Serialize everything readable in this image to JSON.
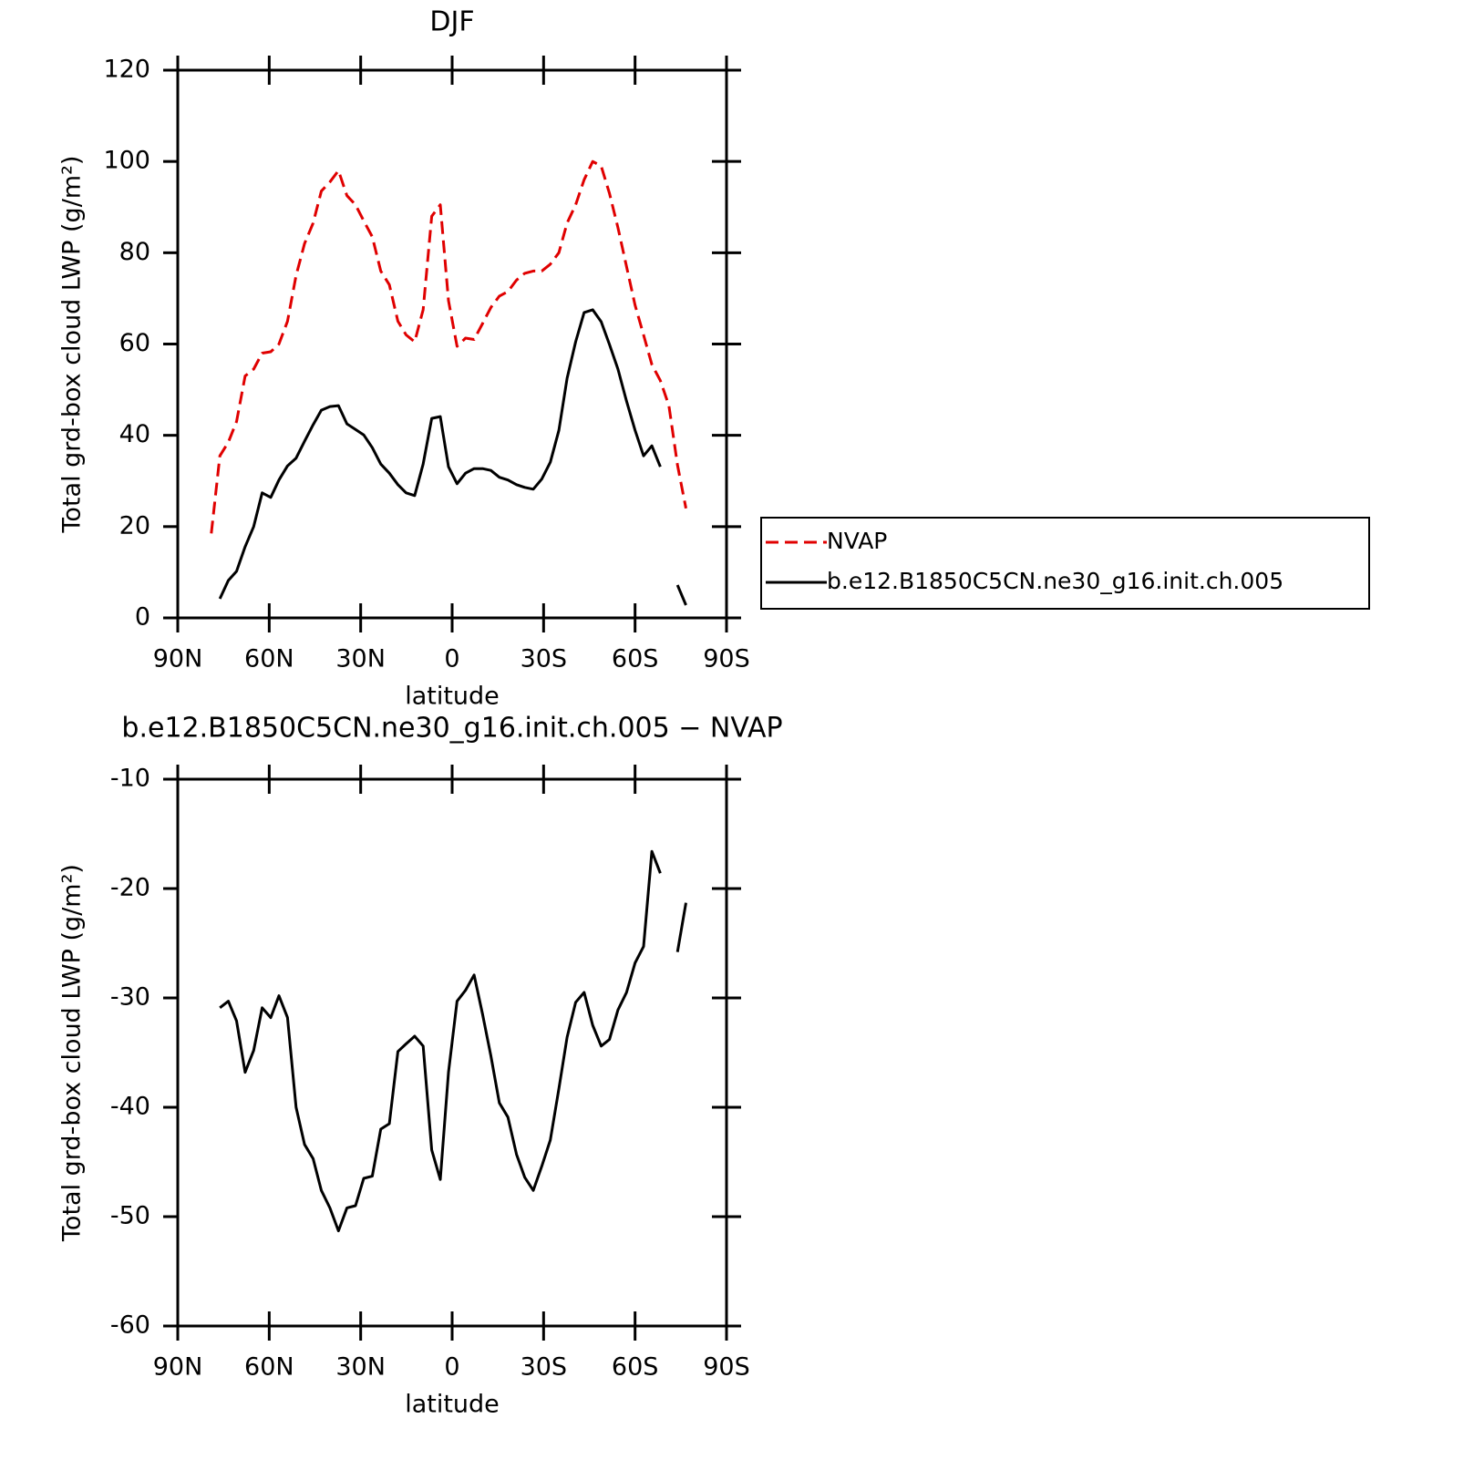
{
  "chart_data": [
    {
      "type": "line",
      "title": "DJF",
      "xlabel": "latitude",
      "ylabel": "Total grd-box cloud LWP (g/m²)",
      "xlim": [
        90,
        -90
      ],
      "ylim": [
        0,
        120
      ],
      "xticks": [
        {
          "value": 90,
          "label": "90N"
        },
        {
          "value": 60,
          "label": "60N"
        },
        {
          "value": 30,
          "label": "30N"
        },
        0,
        {
          "value": -30,
          "label": "30S"
        },
        {
          "value": -60,
          "label": "60S"
        },
        {
          "value": -90,
          "label": "90S"
        }
      ],
      "yticks": [
        0,
        20,
        40,
        60,
        80,
        100,
        120
      ],
      "x": [
        79.0,
        76.2,
        73.4,
        70.7,
        67.9,
        65.1,
        62.3,
        59.5,
        56.8,
        54.0,
        51.2,
        48.4,
        45.6,
        42.9,
        40.1,
        37.3,
        34.5,
        31.7,
        29.0,
        26.2,
        23.4,
        20.6,
        17.8,
        15.1,
        12.3,
        9.5,
        6.7,
        3.9,
        1.2,
        -1.6,
        -4.4,
        -7.2,
        -10.0,
        -12.7,
        -15.5,
        -18.3,
        -21.1,
        -23.8,
        -26.6,
        -29.4,
        -32.2,
        -35.0,
        -37.7,
        -40.5,
        -43.3,
        -46.1,
        -48.9,
        -51.6,
        -54.4,
        -57.2,
        -60.0,
        -62.8,
        -65.5,
        -68.3,
        -71.1,
        -73.9,
        -76.7
      ],
      "series": [
        {
          "name": "NVAP",
          "color": "#e00000",
          "dash": true,
          "values": [
            18.5,
            35.5,
            38.5,
            43,
            53,
            54.5,
            58,
            58.3,
            60,
            65,
            75,
            82,
            86.5,
            93.5,
            95.5,
            98,
            92.5,
            90.5,
            87,
            83.5,
            76,
            73,
            65,
            62,
            60.5,
            67.5,
            88,
            90.5,
            69.5,
            59.5,
            61.3,
            61,
            64.5,
            68,
            70.5,
            71.5,
            74,
            75.5,
            76,
            76,
            77.5,
            80,
            86.5,
            90.5,
            96,
            100,
            99,
            93,
            85.5,
            77,
            68.5,
            62,
            55.5,
            52,
            46.5,
            33.5,
            24
          ]
        },
        {
          "name": "b.e12.B1850C5CN.ne30_g16.init.ch.005",
          "color": "#000000",
          "dash": false,
          "values": [
            null,
            4.2,
            8.2,
            10.2,
            15.6,
            20,
            27.4,
            26.4,
            30.2,
            33.3,
            35,
            38.7,
            42.3,
            45.5,
            46.3,
            46.5,
            42.5,
            41.3,
            40.1,
            37.3,
            33.7,
            31.7,
            29.2,
            27.4,
            26.8,
            33.7,
            43.7,
            44.1,
            33.1,
            29.4,
            31.7,
            32.7,
            32.7,
            32.3,
            30.8,
            30.2,
            29.2,
            28.6,
            28.2,
            30.4,
            34.1,
            41.1,
            52.5,
            60.5,
            66.9,
            67.5,
            64.9,
            59.9,
            54.5,
            47.5,
            41.1,
            35.5,
            37.7,
            33.1,
            null,
            7.2,
            2.8
          ]
        }
      ]
    },
    {
      "type": "line",
      "title": "b.e12.B1850C5CN.ne30_g16.init.ch.005 − NVAP",
      "xlabel": "latitude",
      "ylabel": "Total grd-box cloud LWP (g/m²)",
      "xlim": [
        90,
        -90
      ],
      "ylim": [
        -60,
        -10
      ],
      "xticks": [
        {
          "value": 90,
          "label": "90N"
        },
        {
          "value": 60,
          "label": "60N"
        },
        {
          "value": 30,
          "label": "30N"
        },
        0,
        {
          "value": -30,
          "label": "30S"
        },
        {
          "value": -60,
          "label": "60S"
        },
        {
          "value": -90,
          "label": "90S"
        }
      ],
      "yticks": [
        -60,
        -50,
        -40,
        -30,
        -20,
        -10
      ],
      "x": [
        79.0,
        76.2,
        73.4,
        70.7,
        67.9,
        65.1,
        62.3,
        59.5,
        56.8,
        54.0,
        51.2,
        48.4,
        45.6,
        42.9,
        40.1,
        37.3,
        34.5,
        31.7,
        29.0,
        26.2,
        23.4,
        20.6,
        17.8,
        15.1,
        12.3,
        9.5,
        6.7,
        3.9,
        1.2,
        -1.6,
        -4.4,
        -7.2,
        -10.0,
        -12.7,
        -15.5,
        -18.3,
        -21.1,
        -23.8,
        -26.6,
        -29.4,
        -32.2,
        -35.0,
        -37.7,
        -40.5,
        -43.3,
        -46.1,
        -48.9,
        -51.6,
        -54.4,
        -57.2,
        -60.0,
        -62.8,
        -65.5,
        -68.3,
        -71.1,
        -73.9,
        -76.7
      ],
      "series": [
        {
          "color": "#000000",
          "dash": false,
          "values": [
            null,
            -30.9,
            -30.3,
            -32.1,
            -36.8,
            -34.8,
            -30.9,
            -31.8,
            -29.8,
            -31.8,
            -40,
            -43.4,
            -44.7,
            -47.6,
            -49.2,
            -51.3,
            -49.2,
            -49,
            -46.5,
            -46.3,
            -42,
            -41.5,
            -34.9,
            -34.2,
            -33.5,
            -34.4,
            -43.9,
            -46.6,
            -36.8,
            -30.3,
            -29.3,
            -27.9,
            -31.5,
            -35.3,
            -39.6,
            -40.9,
            -44.3,
            -46.4,
            -47.6,
            -45.4,
            -43,
            -38.3,
            -33.6,
            -30.4,
            -29.5,
            -32.5,
            -34.4,
            -33.8,
            -31.1,
            -29.5,
            -26.8,
            -25.3,
            -16.6,
            -18.6,
            null,
            -25.8,
            -21.3
          ]
        }
      ]
    }
  ]
}
